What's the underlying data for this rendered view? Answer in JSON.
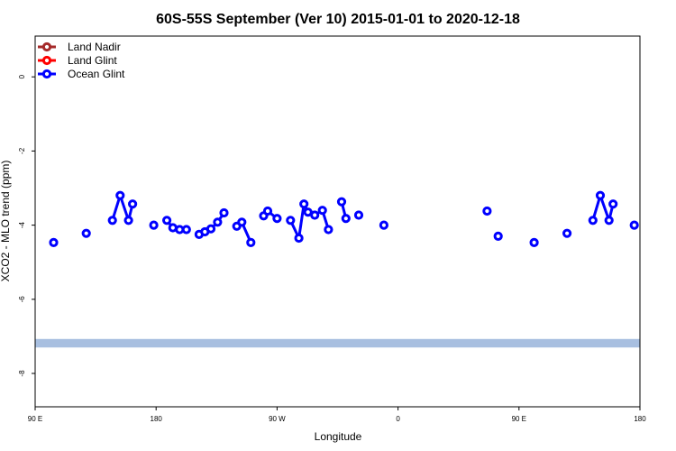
{
  "chart_data": {
    "type": "line",
    "title": "60S-55S September (Ver 10)   2015-01-01 to 2020-12-18",
    "xlabel": "Longitude",
    "ylabel": "XCO2 - MLO trend (ppm)",
    "xlim": [
      90,
      270
    ],
    "ylim": [
      -8.9,
      1.1
    ],
    "x_ticks": [
      {
        "value": 90,
        "label": "90 E"
      },
      {
        "value": 126,
        "label": "180"
      },
      {
        "value": 162,
        "label": "90 W"
      },
      {
        "value": 198,
        "label": "0"
      },
      {
        "value": 234,
        "label": "90 E"
      },
      {
        "value": 270,
        "label": "180"
      }
    ],
    "y_ticks": [
      {
        "value": 0,
        "label": "0"
      },
      {
        "value": -2,
        "label": "-2"
      },
      {
        "value": -4,
        "label": "-4"
      },
      {
        "value": -6,
        "label": "-6"
      },
      {
        "value": -8,
        "label": "-8"
      }
    ],
    "grid": false,
    "legend_position": "top-left",
    "reference_band": {
      "y_from": -7.07,
      "y_to": -7.3,
      "color": "#a8bfe0"
    },
    "series": [
      {
        "name": "Land Nadir",
        "color": "#a52a2a",
        "segments": []
      },
      {
        "name": "Land Glint",
        "color": "#ff0000",
        "segments": []
      },
      {
        "name": "Ocean Glint",
        "color": "#0000ff",
        "segments": [
          [
            [
              95.5,
              -4.47
            ]
          ],
          [
            [
              105.2,
              -4.22
            ]
          ],
          [
            [
              113.0,
              -3.87
            ],
            [
              115.3,
              -3.2
            ],
            [
              117.8,
              -3.87
            ],
            [
              119.0,
              -3.43
            ]
          ],
          [
            [
              125.3,
              -4.0
            ]
          ],
          [
            [
              129.2,
              -3.87
            ],
            [
              131.0,
              -4.07
            ],
            [
              133.0,
              -4.12
            ],
            [
              135.0,
              -4.12
            ]
          ],
          [
            [
              138.8,
              -4.25
            ],
            [
              140.5,
              -4.18
            ],
            [
              142.3,
              -4.1
            ],
            [
              144.3,
              -3.92
            ],
            [
              146.2,
              -3.67
            ]
          ],
          [
            [
              150.0,
              -4.03
            ],
            [
              151.5,
              -3.92
            ],
            [
              154.2,
              -4.47
            ]
          ],
          [
            [
              158.0,
              -3.75
            ],
            [
              159.2,
              -3.62
            ],
            [
              162.0,
              -3.82
            ]
          ],
          [
            [
              166.0,
              -3.87
            ],
            [
              168.5,
              -4.35
            ],
            [
              170.0,
              -3.43
            ],
            [
              171.2,
              -3.65
            ],
            [
              173.2,
              -3.73
            ],
            [
              175.5,
              -3.6
            ],
            [
              177.3,
              -4.12
            ]
          ],
          [
            [
              181.2,
              -3.37
            ],
            [
              182.5,
              -3.82
            ]
          ],
          [
            [
              186.3,
              -3.73
            ]
          ],
          [
            [
              193.8,
              -4.0
            ]
          ],
          [
            [
              224.5,
              -3.62
            ]
          ],
          [
            [
              227.8,
              -4.3
            ]
          ],
          [
            [
              238.5,
              -4.47
            ]
          ],
          [
            [
              248.3,
              -4.22
            ]
          ],
          [
            [
              256.0,
              -3.87
            ],
            [
              258.2,
              -3.2
            ],
            [
              260.8,
              -3.87
            ],
            [
              262.0,
              -3.43
            ]
          ],
          [
            [
              268.3,
              -4.0
            ]
          ]
        ]
      }
    ]
  }
}
